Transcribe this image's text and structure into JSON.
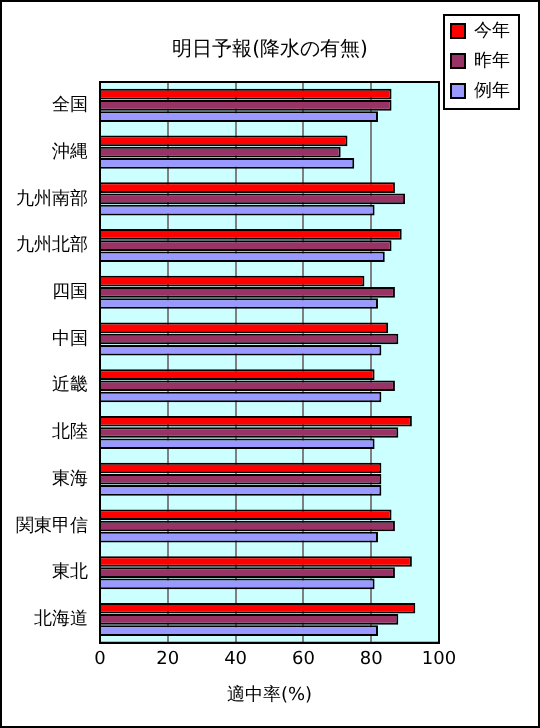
{
  "chart_data": {
    "type": "bar",
    "orientation": "horizontal",
    "title": "明日予報(降水の有無)",
    "xlabel": "適中率(%)",
    "categories": [
      "全国",
      "沖縄",
      "九州南部",
      "九州北部",
      "四国",
      "中国",
      "近畿",
      "北陸",
      "東海",
      "関東甲信",
      "東北",
      "北海道"
    ],
    "series": [
      {
        "name": "今年",
        "color": "#ff0000",
        "values": [
          86,
          73,
          87,
          89,
          78,
          85,
          81,
          92,
          83,
          86,
          92,
          93
        ]
      },
      {
        "name": "昨年",
        "color": "#993366",
        "values": [
          86,
          71,
          90,
          86,
          87,
          88,
          87,
          88,
          83,
          87,
          87,
          88
        ]
      },
      {
        "name": "例年",
        "color": "#9999ff",
        "values": [
          82,
          75,
          81,
          84,
          82,
          83,
          83,
          81,
          83,
          82,
          81,
          82
        ]
      }
    ],
    "xlim": [
      0,
      100
    ],
    "xticks": [
      0,
      20,
      40,
      60,
      80,
      100
    ],
    "grid": "x",
    "legend": "top right"
  }
}
